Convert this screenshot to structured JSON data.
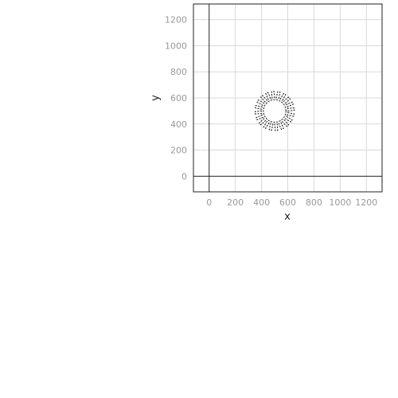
{
  "chart_data": {
    "type": "line",
    "title": "",
    "xlabel": "x",
    "ylabel": "y",
    "xlim": [
      -120,
      1320
    ],
    "ylim": [
      -120,
      1320
    ],
    "x_ticks": [
      0,
      200,
      400,
      600,
      800,
      1000,
      1200
    ],
    "y_ticks": [
      0,
      200,
      400,
      600,
      800,
      1000,
      1200
    ],
    "grid": true,
    "series": [
      {
        "shape": "gear-like zigzag ring",
        "center": [
          500,
          500
        ],
        "inner_radius": 100,
        "outer_radius": 150,
        "teeth": 20,
        "line_style": "dashed",
        "color": "#000000"
      }
    ]
  }
}
